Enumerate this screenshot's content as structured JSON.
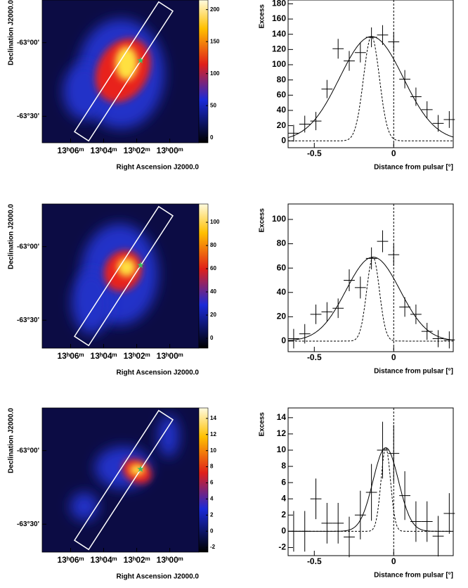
{
  "chart_data": [
    {
      "type": "heatmap",
      "xlabel": "Right Ascension J2000.0",
      "ylabel": "Declination J2000.0",
      "xlim": [
        196.93,
        194.56
      ],
      "ylim": [
        -63.68,
        -62.71
      ],
      "xticks": [
        {
          "value": 196.5,
          "label": "13ʰ06ᵐ"
        },
        {
          "value": 196.0,
          "label": "13ʰ04ᵐ"
        },
        {
          "value": 195.5,
          "label": "13ʰ02ᵐ"
        },
        {
          "value": 195.0,
          "label": "13ʰ00ᵐ"
        }
      ],
      "yticks": [
        {
          "value": -63.0,
          "label": "-63°00'"
        },
        {
          "value": -63.5,
          "label": "-63°30'"
        }
      ],
      "colorbar_lim": [
        -8,
        215
      ],
      "colorbar_ticks": [
        0,
        50,
        100,
        150,
        200
      ]
    },
    {
      "type": "scatter",
      "xlabel": "Distance from pulsar [°]",
      "ylabel": "Excess",
      "xlim": [
        -0.665,
        0.375
      ],
      "ylim": [
        -9,
        185
      ],
      "xticks": [
        -0.5,
        0
      ],
      "yticks": [
        0,
        20,
        40,
        60,
        80,
        100,
        120,
        140,
        160,
        180
      ],
      "x": [
        -0.63,
        -0.56,
        -0.49,
        -0.42,
        -0.35,
        -0.28,
        -0.21,
        -0.14,
        -0.07,
        0.0,
        0.07,
        0.14,
        0.21,
        0.28,
        0.35
      ],
      "values": [
        10,
        22,
        26,
        68,
        121,
        105,
        116,
        136,
        139,
        130,
        81,
        58,
        41,
        23,
        28
      ],
      "yerr": [
        11,
        11,
        12,
        12,
        13,
        13,
        13,
        13,
        13,
        13,
        12,
        12,
        11,
        11,
        11
      ],
      "xerr": 0.035,
      "fits": [
        {
          "amplitude": 137,
          "mean": -0.14,
          "sigma": 0.2,
          "style": "solid"
        },
        {
          "amplitude": 137,
          "mean": -0.14,
          "sigma": 0.05,
          "style": "dashed"
        }
      ],
      "vline": 0
    },
    {
      "type": "heatmap",
      "xlabel": "Right Ascension J2000.0",
      "ylabel": "Declination J2000.0",
      "xlim": [
        196.93,
        194.56
      ],
      "ylim": [
        -63.69,
        -62.71
      ],
      "xticks": [
        {
          "value": 196.5,
          "label": "13ʰ06ᵐ"
        },
        {
          "value": 196.0,
          "label": "13ʰ04ᵐ"
        },
        {
          "value": 195.5,
          "label": "13ʰ02ᵐ"
        },
        {
          "value": 195.0,
          "label": "13ʰ00ᵐ"
        }
      ],
      "yticks": [
        {
          "value": -63.0,
          "label": "-63°00'"
        },
        {
          "value": -63.5,
          "label": "-63°30'"
        }
      ],
      "colorbar_lim": [
        -8.5,
        115.8
      ],
      "colorbar_ticks": [
        0,
        20,
        40,
        60,
        80,
        100
      ]
    },
    {
      "type": "scatter",
      "xlabel": "Distance from pulsar [°]",
      "ylabel": "Excess",
      "xlim": [
        -0.665,
        0.375
      ],
      "ylim": [
        -8.7,
        112.7
      ],
      "xticks": [
        -0.5,
        0
      ],
      "yticks": [
        0,
        20,
        40,
        60,
        80,
        100
      ],
      "x": [
        -0.63,
        -0.56,
        -0.49,
        -0.42,
        -0.35,
        -0.28,
        -0.21,
        -0.14,
        -0.07,
        0.0,
        0.07,
        0.14,
        0.21,
        0.28,
        0.35
      ],
      "values": [
        2,
        6,
        22,
        24,
        27,
        50,
        44,
        68,
        82,
        71,
        28,
        22,
        8,
        2,
        1
      ],
      "yerr": [
        8,
        8,
        8,
        8,
        8,
        9,
        9,
        9,
        9,
        9,
        8,
        8,
        7,
        7,
        7
      ],
      "xerr": 0.035,
      "fits": [
        {
          "amplitude": 69,
          "mean": -0.13,
          "sigma": 0.17,
          "style": "solid"
        },
        {
          "amplitude": 69,
          "mean": -0.13,
          "sigma": 0.04,
          "style": "dashed"
        }
      ],
      "vline": 0
    },
    {
      "type": "heatmap",
      "xlabel": "Right Ascension J2000.0",
      "ylabel": "Declination J2000.0",
      "xlim": [
        196.93,
        194.56
      ],
      "ylim": [
        -63.69,
        -62.71
      ],
      "xticks": [
        {
          "value": 196.5,
          "label": "13ʰ06ᵐ"
        },
        {
          "value": 196.0,
          "label": "13ʰ04ᵐ"
        },
        {
          "value": 195.5,
          "label": "13ʰ02ᵐ"
        },
        {
          "value": 195.0,
          "label": "13ʰ00ᵐ"
        }
      ],
      "yticks": [
        {
          "value": -63.0,
          "label": "-63°00'"
        },
        {
          "value": -63.5,
          "label": "-63°30'"
        }
      ],
      "colorbar_lim": [
        -2.6,
        15.3
      ],
      "colorbar_ticks": [
        -2,
        0,
        2,
        4,
        6,
        8,
        10,
        12,
        14
      ]
    },
    {
      "type": "scatter",
      "xlabel": "Distance from pulsar [°]",
      "ylabel": "Excess",
      "xlim": [
        -0.665,
        0.375
      ],
      "ylim": [
        -3,
        15.2
      ],
      "xticks": [
        -0.5,
        0
      ],
      "yticks": [
        -2,
        0,
        2,
        4,
        6,
        8,
        10,
        12,
        14
      ],
      "x": [
        -0.63,
        -0.56,
        -0.49,
        -0.42,
        -0.35,
        -0.28,
        -0.21,
        -0.14,
        -0.07,
        0.0,
        0.07,
        0.14,
        0.21,
        0.28,
        0.35
      ],
      "values": [
        0,
        0,
        4,
        1,
        1,
        -0.7,
        2,
        4.8,
        10,
        9.6,
        4.4,
        1.2,
        1.2,
        -0.6,
        2.2
      ],
      "yerr": [
        2.5,
        2.5,
        2.5,
        2.5,
        2.5,
        2.5,
        3,
        3.5,
        3.5,
        3.5,
        3,
        2.5,
        2.5,
        2.5,
        2.5
      ],
      "xerr": 0.035,
      "fits": [
        {
          "amplitude": 10.3,
          "mean": -0.05,
          "sigma": 0.08,
          "style": "solid"
        },
        {
          "amplitude": 10.3,
          "mean": -0.05,
          "sigma": 0.03,
          "style": "dashed"
        }
      ],
      "vline": 0
    }
  ]
}
